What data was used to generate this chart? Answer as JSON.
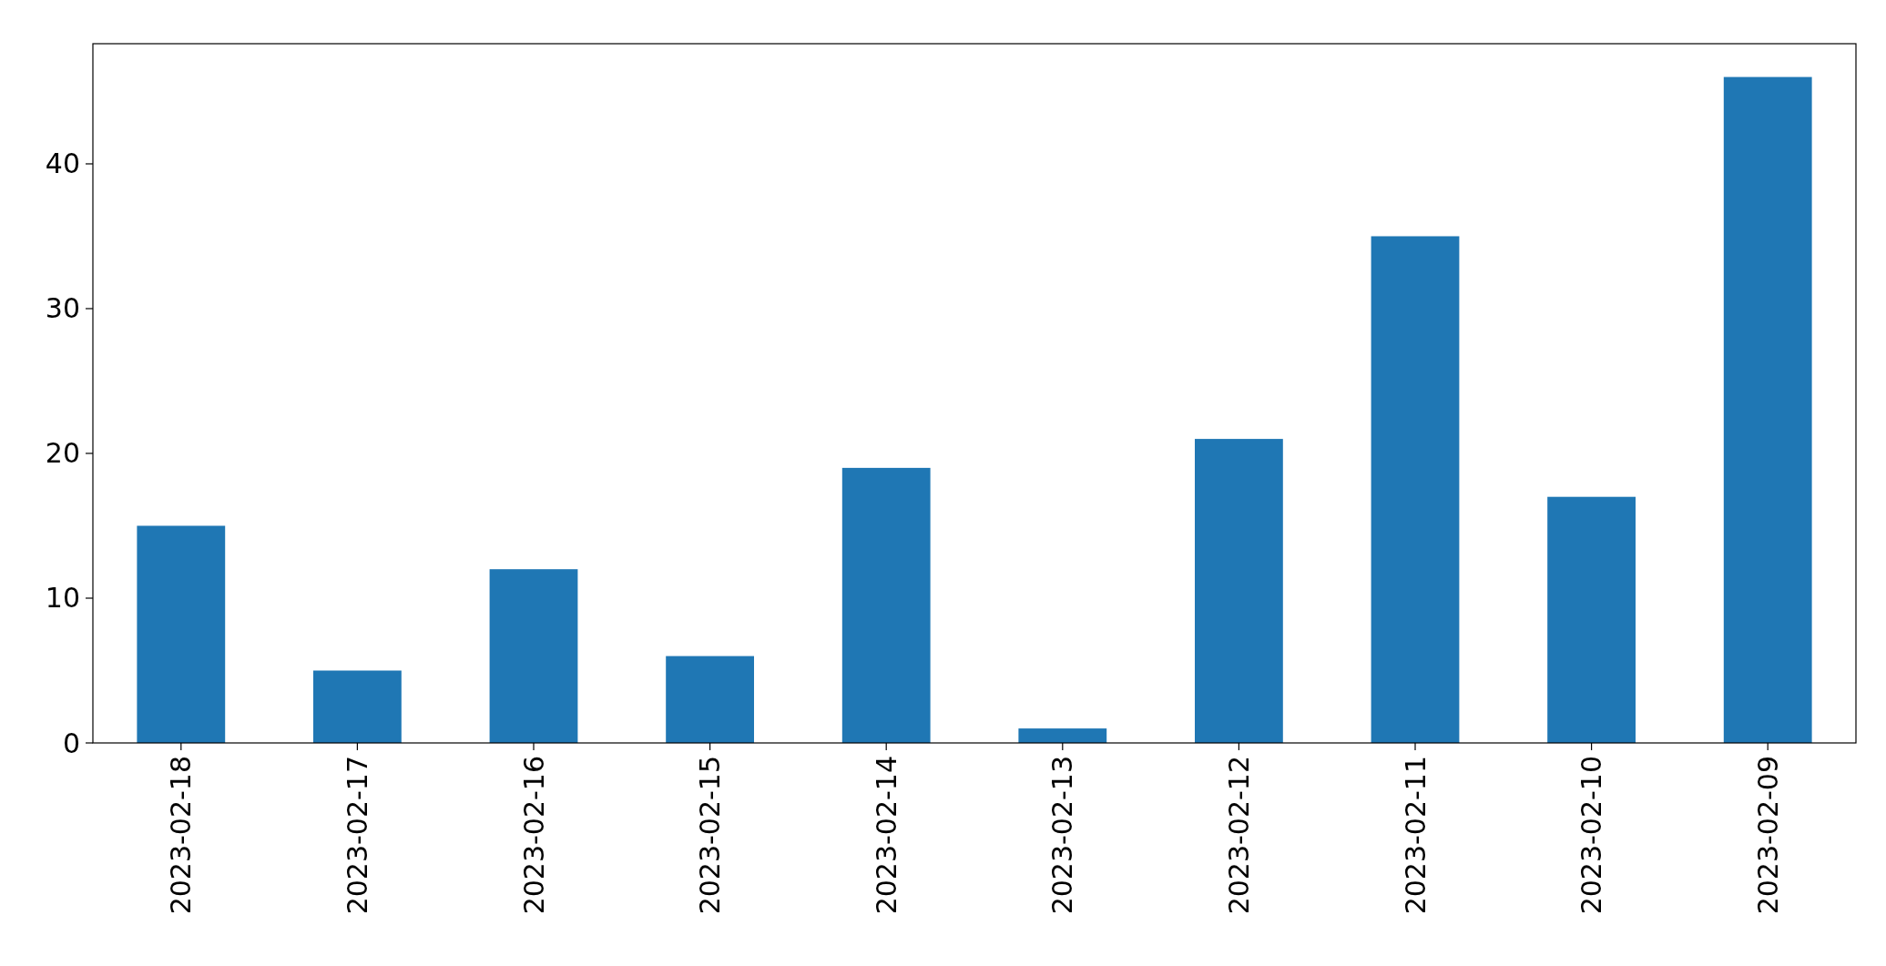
{
  "chart_data": {
    "type": "bar",
    "categories": [
      "2023-02-18",
      "2023-02-17",
      "2023-02-16",
      "2023-02-15",
      "2023-02-14",
      "2023-02-13",
      "2023-02-12",
      "2023-02-11",
      "2023-02-10",
      "2023-02-09"
    ],
    "values": [
      15,
      5,
      12,
      6,
      19,
      1,
      21,
      35,
      17,
      46
    ],
    "color": "#1f77b4",
    "ylim": [
      0,
      48.3
    ],
    "yticks": [
      0,
      10,
      20,
      30,
      40
    ]
  }
}
